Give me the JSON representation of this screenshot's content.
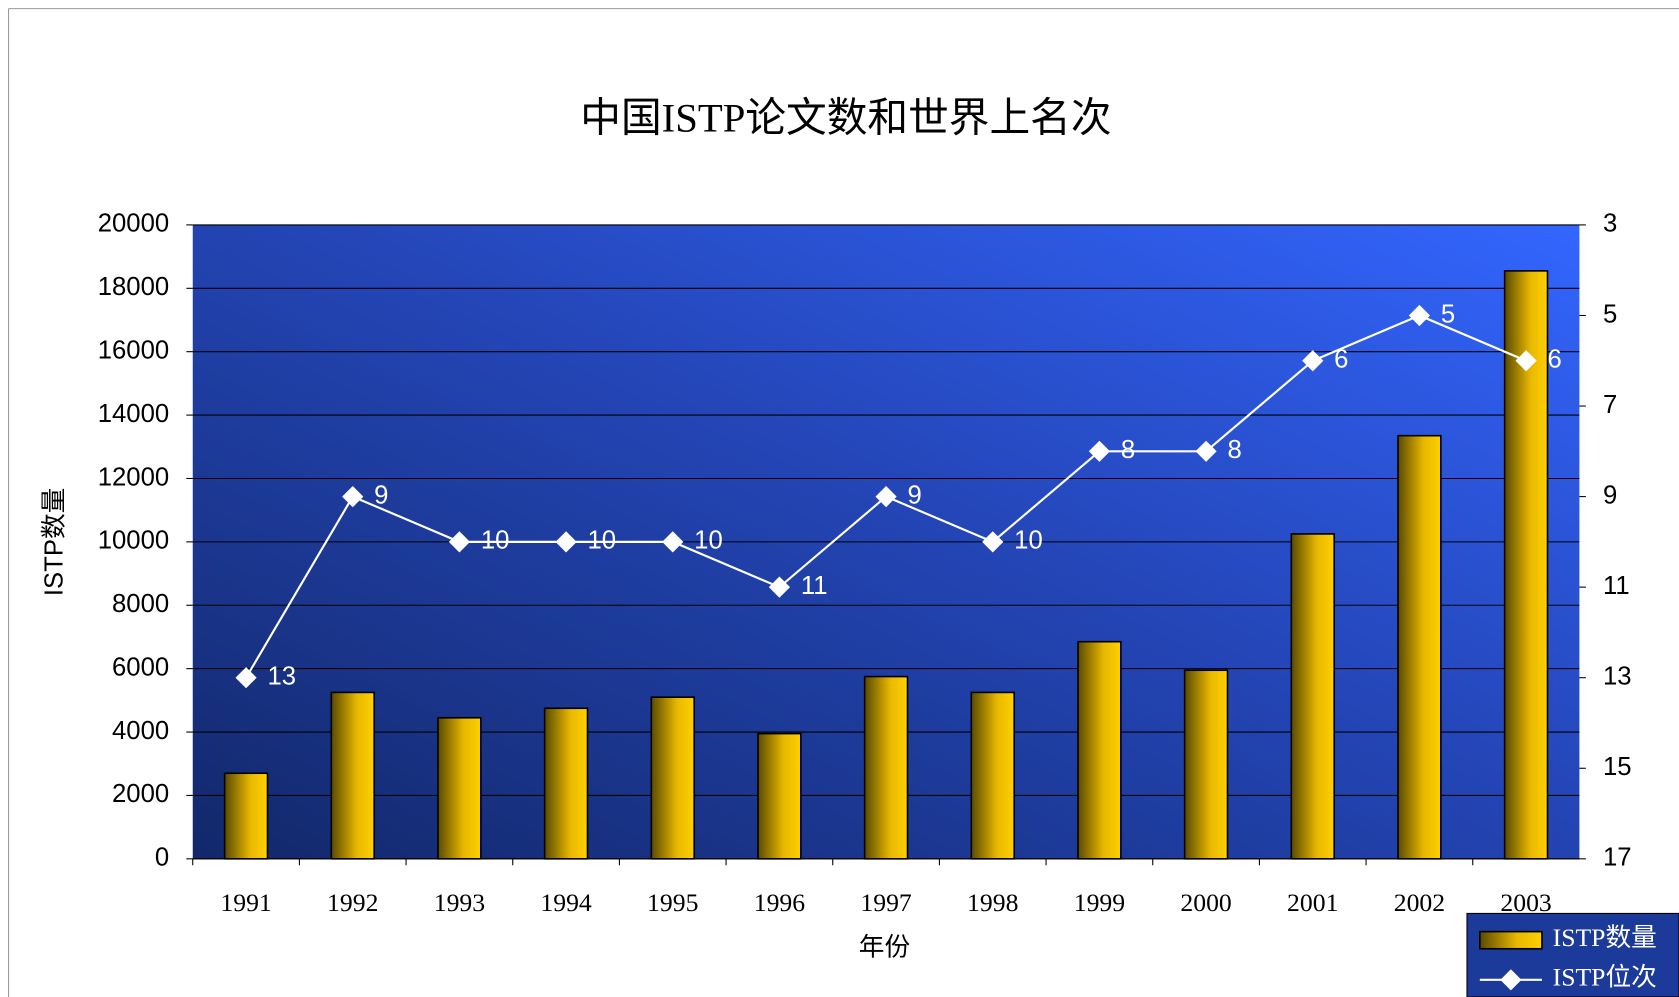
{
  "chart_data": {
    "type": "bar",
    "title": "中国ISTP论文数和世界上名次",
    "x_label": "年份",
    "y_label": "ISTP数量",
    "categories": [
      "1991",
      "1992",
      "1993",
      "1994",
      "1995",
      "1996",
      "1997",
      "1998",
      "1999",
      "2000",
      "2001",
      "2002",
      "2003"
    ],
    "series": [
      {
        "name": "ISTP数量",
        "type": "bar",
        "color": "#e8b800",
        "values": [
          2700,
          5250,
          4450,
          4750,
          5100,
          3950,
          5750,
          5250,
          6850,
          5950,
          10250,
          13350,
          18550
        ]
      },
      {
        "name": "ISTP位次",
        "type": "line",
        "axis": "y2",
        "color": "#ffffff",
        "values": [
          13,
          9,
          10,
          10,
          10,
          11,
          9,
          10,
          8,
          8,
          6,
          5,
          6
        ],
        "data_labels": true
      }
    ],
    "ylim": [
      0,
      20000
    ],
    "yticks": [
      0,
      2000,
      4000,
      6000,
      8000,
      10000,
      12000,
      14000,
      16000,
      18000,
      20000
    ],
    "y2lim": [
      17,
      3
    ],
    "y2ticks": [
      3,
      5,
      7,
      9,
      11,
      13,
      15,
      17
    ],
    "y2_inverted": true,
    "grid": true,
    "legend": "bottom-right"
  }
}
